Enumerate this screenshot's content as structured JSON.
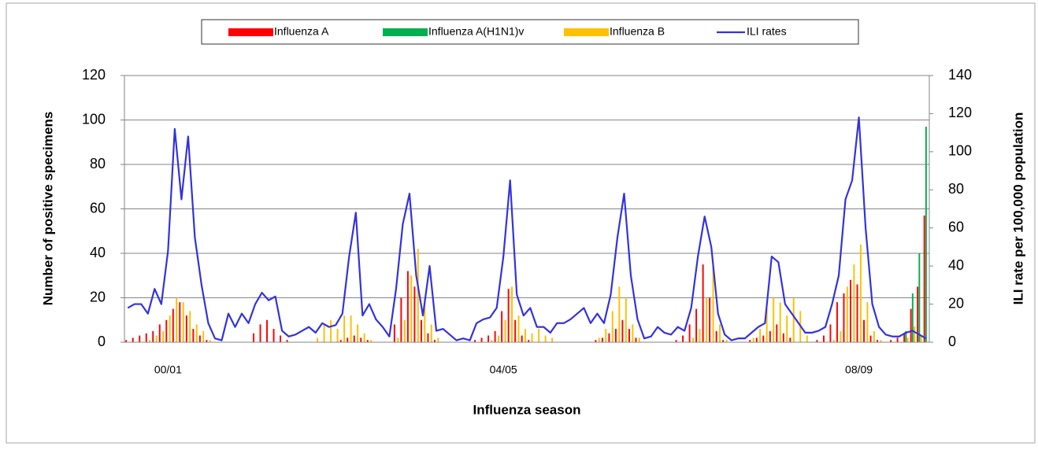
{
  "chart_data": {
    "type": "bar",
    "x_label": "Influenza season",
    "y_label": "Number of positive specimens",
    "y2_label": "ILI rate per 100,000 population",
    "categories": [
      null,
      null,
      null,
      null,
      null,
      null,
      "00/01",
      null,
      null,
      null,
      null,
      null,
      null,
      null,
      null,
      null,
      null,
      null,
      null,
      null,
      null,
      null,
      null,
      null,
      null,
      null,
      null,
      null,
      null,
      null,
      null,
      null,
      null,
      null,
      null,
      null,
      null,
      null,
      null,
      null,
      null,
      null,
      null,
      null,
      null,
      null,
      null,
      null,
      null,
      null,
      null,
      null,
      null,
      null,
      null,
      null,
      "04/05",
      null,
      null,
      null,
      null,
      null,
      null,
      null,
      null,
      null,
      null,
      null,
      null,
      null,
      null,
      null,
      null,
      null,
      null,
      null,
      null,
      null,
      null,
      null,
      null,
      null,
      null,
      null,
      null,
      null,
      null,
      null,
      null,
      null,
      null,
      null,
      null,
      null,
      null,
      null,
      null,
      null,
      null,
      null,
      null,
      null,
      null,
      null,
      null,
      null,
      null,
      null,
      null,
      "08/09",
      null,
      null,
      null,
      null,
      null,
      null,
      null,
      null,
      null,
      null
    ],
    "series": [
      {
        "name": "Influenza A",
        "type": "bar",
        "color": "#ff0000",
        "values": [
          1,
          2,
          3,
          4,
          5,
          8,
          10,
          15,
          18,
          12,
          6,
          3,
          1,
          0,
          0,
          0,
          0,
          0,
          0,
          4,
          8,
          10,
          6,
          3,
          1,
          0,
          0,
          0,
          0,
          0,
          0,
          0,
          1,
          2,
          3,
          2,
          1,
          0,
          0,
          0,
          8,
          20,
          32,
          25,
          10,
          4,
          1,
          0,
          0,
          0,
          0,
          0,
          1,
          2,
          3,
          5,
          14,
          24,
          10,
          3,
          1,
          0,
          0,
          0,
          0,
          0,
          0,
          0,
          0,
          0,
          1,
          2,
          4,
          6,
          10,
          6,
          2,
          0,
          0,
          0,
          0,
          0,
          1,
          3,
          8,
          15,
          35,
          20,
          5,
          1,
          0,
          0,
          0,
          1,
          2,
          3,
          5,
          8,
          4,
          2,
          0,
          0,
          0,
          1,
          3,
          8,
          18,
          22,
          28,
          26,
          10,
          3,
          1,
          0,
          1,
          2,
          4,
          15,
          25,
          57
        ]
      },
      {
        "name": "Influenza A(H1N1)v",
        "type": "bar",
        "color": "#00b050",
        "values": [
          0,
          0,
          0,
          0,
          0,
          0,
          0,
          0,
          0,
          0,
          0,
          0,
          0,
          0,
          0,
          0,
          0,
          0,
          0,
          0,
          0,
          0,
          0,
          0,
          0,
          0,
          0,
          0,
          0,
          0,
          0,
          0,
          0,
          0,
          0,
          0,
          0,
          0,
          0,
          0,
          0,
          0,
          0,
          0,
          0,
          0,
          0,
          0,
          0,
          0,
          0,
          0,
          0,
          0,
          0,
          0,
          0,
          0,
          0,
          0,
          0,
          0,
          0,
          0,
          0,
          0,
          0,
          0,
          0,
          0,
          0,
          0,
          0,
          0,
          0,
          0,
          0,
          0,
          0,
          0,
          0,
          0,
          0,
          0,
          0,
          0,
          0,
          0,
          0,
          0,
          0,
          0,
          0,
          0,
          0,
          0,
          0,
          0,
          0,
          0,
          0,
          0,
          0,
          0,
          0,
          0,
          0,
          0,
          0,
          0,
          0,
          0,
          0,
          0,
          0,
          0,
          5,
          22,
          40,
          97
        ]
      },
      {
        "name": "Influenza B",
        "type": "bar",
        "color": "#ffc000",
        "values": [
          0,
          0,
          0,
          1,
          3,
          5,
          12,
          20,
          18,
          14,
          8,
          5,
          1,
          0,
          0,
          0,
          0,
          0,
          0,
          0,
          0,
          0,
          0,
          0,
          0,
          0,
          0,
          0,
          2,
          8,
          10,
          6,
          12,
          12,
          8,
          4,
          1,
          0,
          0,
          0,
          2,
          10,
          30,
          42,
          20,
          8,
          2,
          0,
          0,
          0,
          0,
          0,
          0,
          0,
          1,
          3,
          10,
          25,
          12,
          6,
          4,
          6,
          3,
          2,
          0,
          0,
          0,
          0,
          0,
          0,
          2,
          6,
          14,
          25,
          20,
          8,
          2,
          0,
          0,
          0,
          0,
          0,
          0,
          0,
          2,
          6,
          20,
          35,
          8,
          1,
          0,
          0,
          0,
          2,
          6,
          15,
          20,
          18,
          12,
          20,
          14,
          3,
          0,
          0,
          0,
          1,
          5,
          25,
          35,
          44,
          18,
          5,
          1,
          0,
          0,
          0,
          2,
          7,
          3,
          0
        ]
      },
      {
        "name": "ILI rates",
        "type": "line",
        "axis": "y2",
        "color": "#3333dd",
        "values": [
          18,
          20,
          20,
          15,
          28,
          20,
          48,
          112,
          75,
          108,
          55,
          30,
          10,
          2,
          1,
          15,
          8,
          15,
          10,
          20,
          26,
          22,
          24,
          6,
          3,
          4,
          6,
          8,
          5,
          10,
          8,
          9,
          15,
          45,
          68,
          14,
          20,
          12,
          8,
          3,
          28,
          62,
          78,
          35,
          14,
          40,
          6,
          7,
          4,
          1,
          2,
          1,
          10,
          12,
          13,
          18,
          45,
          85,
          25,
          14,
          18,
          8,
          8,
          5,
          10,
          10,
          12,
          15,
          18,
          10,
          15,
          10,
          25,
          55,
          78,
          35,
          12,
          2,
          3,
          8,
          5,
          4,
          8,
          6,
          18,
          45,
          66,
          50,
          15,
          4,
          1,
          2,
          2,
          5,
          8,
          10,
          45,
          42,
          20,
          15,
          10,
          5,
          5,
          6,
          8,
          20,
          35,
          75,
          85,
          118,
          60,
          20,
          8,
          4,
          3,
          3,
          5,
          6,
          4,
          2
        ]
      }
    ],
    "ylim": [
      0,
      120
    ],
    "yticks": [
      0,
      20,
      40,
      60,
      80,
      100,
      120
    ],
    "y2lim": [
      0,
      140
    ],
    "y2ticks": [
      0,
      20,
      40,
      60,
      80,
      100,
      120,
      140
    ],
    "grid": true,
    "legend": "top"
  }
}
